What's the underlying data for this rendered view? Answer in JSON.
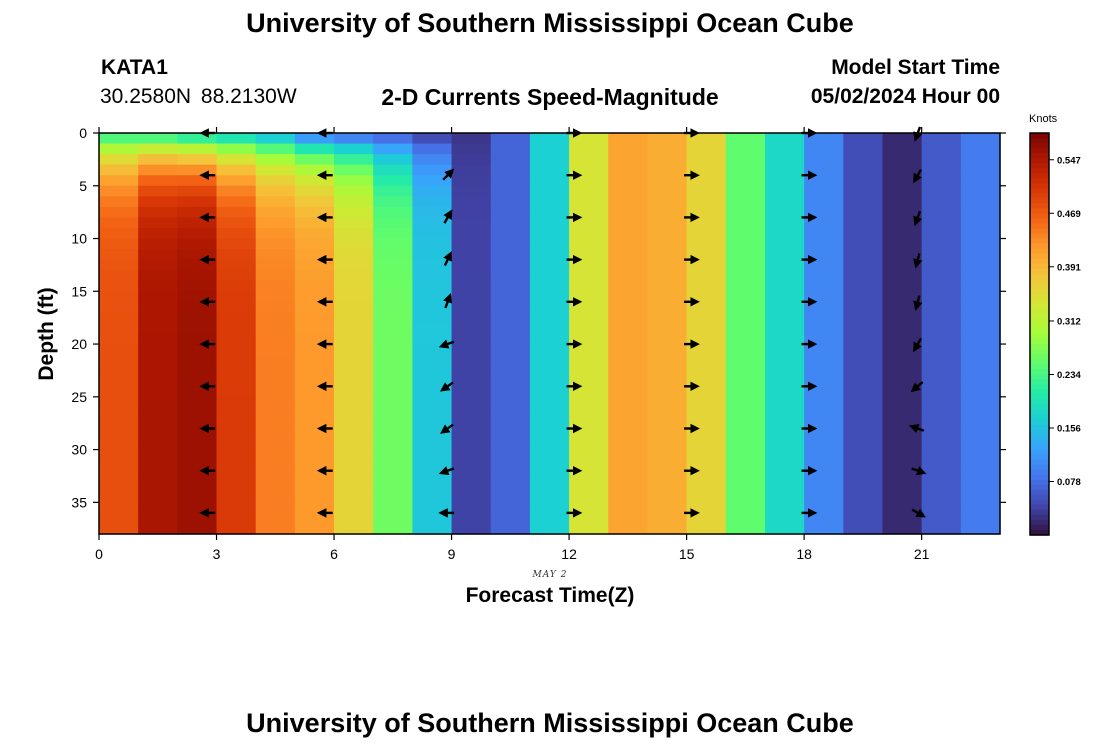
{
  "header": {
    "title": "University of Southern Mississippi Ocean Cube",
    "station": "KATA1",
    "coords": "30.2580N  88.2130W",
    "subtitle": "2-D Currents Speed-Magnitude",
    "start_label": "Model Start Time",
    "start_value": "05/02/2024 Hour 00"
  },
  "footer": {
    "title": "University of Southern Mississippi Ocean Cube"
  },
  "colors": {
    "colormap": [
      "#30123b",
      "#4145ab",
      "#4675ed",
      "#39a2fc",
      "#1bcfd4",
      "#24eca6",
      "#61fc6c",
      "#a4fc3b",
      "#d1e834",
      "#f3c63a",
      "#fe9b2d",
      "#f36315",
      "#d93806",
      "#b11901",
      "#7a0402"
    ],
    "arrow": "#000000"
  },
  "chart_data": {
    "type": "heatmap",
    "title": "2-D Currents Speed-Magnitude",
    "xlabel": "Forecast Time(Z)",
    "ylabel": "Depth (ft)",
    "date_label": "MAY 2",
    "colorbar_title": "Knots",
    "xlim": [
      0,
      23
    ],
    "ylim": [
      0,
      38
    ],
    "x_ticks": [
      0,
      3,
      6,
      9,
      12,
      15,
      18,
      21
    ],
    "y_ticks": [
      0,
      5,
      10,
      15,
      20,
      25,
      30,
      35
    ],
    "colorbar_range": [
      0,
      0.586
    ],
    "colorbar_ticks": [
      "0.078",
      "0.156",
      "0.234",
      "0.312",
      "0.391",
      "0.469",
      "0.547"
    ],
    "hours": [
      0,
      1,
      2,
      3,
      4,
      5,
      6,
      7,
      8,
      9,
      10,
      11,
      12,
      13,
      14,
      15,
      16,
      17,
      18,
      19,
      20,
      21,
      22
    ],
    "depths": [
      0,
      1,
      2,
      3,
      4,
      5,
      6,
      7,
      8,
      9,
      10,
      11,
      12,
      13,
      14,
      15,
      16,
      17,
      18,
      19,
      20,
      21,
      22,
      23,
      24,
      25,
      26,
      27,
      28,
      29,
      30,
      31,
      32,
      33,
      34,
      35,
      36,
      37
    ],
    "speed_deep_knots": [
      0.48,
      0.55,
      0.56,
      0.5,
      0.44,
      0.42,
      0.36,
      0.26,
      0.16,
      0.04,
      0.07,
      0.17,
      0.34,
      0.41,
      0.4,
      0.36,
      0.25,
      0.18,
      0.1,
      0.05,
      0.02,
      0.06,
      0.09
    ],
    "speed_surface_knots": [
      0.24,
      0.24,
      0.22,
      0.2,
      0.17,
      0.12,
      0.1,
      0.08,
      0.05,
      0.03,
      0.07,
      0.17,
      0.34,
      0.41,
      0.4,
      0.36,
      0.25,
      0.18,
      0.1,
      0.05,
      0.02,
      0.06,
      0.09
    ],
    "vectors": {
      "hours": [
        2.8,
        5.8,
        8.9,
        12.1,
        15.1,
        18.1,
        20.9
      ],
      "depths": [
        0,
        4,
        8,
        12,
        16,
        20,
        24,
        28,
        32,
        36
      ],
      "direction_deg": [
        [
          180,
          180,
          180,
          180,
          180,
          180,
          180,
          180,
          180,
          180
        ],
        [
          180,
          180,
          180,
          180,
          180,
          180,
          180,
          180,
          180,
          180
        ],
        [
          null,
          45,
          60,
          65,
          70,
          200,
          215,
          215,
          200,
          180
        ],
        [
          0,
          0,
          0,
          0,
          0,
          0,
          0,
          0,
          0,
          0
        ],
        [
          0,
          0,
          0,
          0,
          0,
          0,
          0,
          0,
          0,
          0
        ],
        [
          0,
          0,
          0,
          0,
          0,
          0,
          0,
          0,
          0,
          0
        ],
        [
          250,
          240,
          250,
          255,
          255,
          240,
          220,
          160,
          340,
          330
        ]
      ]
    }
  }
}
